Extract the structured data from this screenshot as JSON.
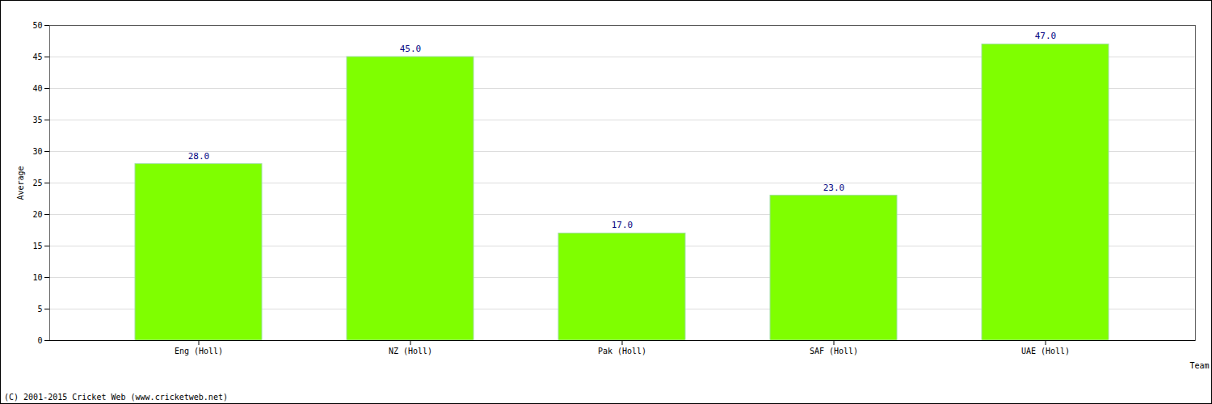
{
  "chart_data": {
    "type": "bar",
    "caption": "(C) 2001-2015 Cricket Web (www.cricketweb.net)",
    "x_label": "Team",
    "y_label": "Average",
    "categories": [
      "Eng (Holl)",
      "NZ (Holl)",
      "Pak (Holl)",
      "SAF (Holl)",
      "UAE (Holl)"
    ],
    "values": [
      28,
      45,
      17,
      23,
      47
    ],
    "value_labels": [
      "28.0",
      "45.0",
      "17.0",
      "23.0",
      "47.0"
    ],
    "color": "#7fff00",
    "ylim": [
      0,
      50
    ],
    "yticks": [
      0,
      5,
      10,
      15,
      20,
      25,
      30,
      35,
      40,
      45,
      50
    ],
    "grid": true,
    "data_labels": true
  }
}
